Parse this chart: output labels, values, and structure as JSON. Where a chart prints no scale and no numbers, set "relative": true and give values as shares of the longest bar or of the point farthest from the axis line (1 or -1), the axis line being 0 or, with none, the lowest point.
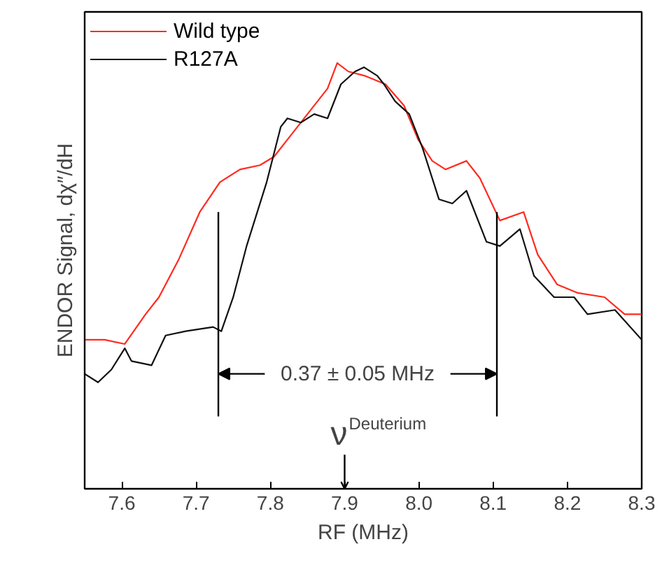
{
  "chart_data": {
    "type": "line",
    "relative": true,
    "xlabel": "RF (MHz)",
    "ylabel": "ENDOR Signal, dχ″/dH",
    "xlim": [
      7.55,
      8.3
    ],
    "xticks": [
      7.6,
      7.7,
      7.8,
      7.9,
      {
        "value": 8.0,
        "label": "8.0"
      },
      8.1,
      8.2,
      8.3
    ],
    "grid": false,
    "legend": "top left",
    "series": [
      {
        "name": "Wild type",
        "color": "#ff2a1f",
        "x": [
          7.55,
          7.577,
          7.604,
          7.632,
          7.65,
          7.677,
          7.705,
          7.732,
          7.759,
          7.786,
          7.805,
          7.823,
          7.85,
          7.877,
          7.89,
          7.905,
          7.927,
          7.955,
          7.98,
          7.999,
          8.018,
          8.036,
          8.064,
          8.082,
          8.109,
          8.141,
          8.16,
          8.186,
          8.214,
          8.25,
          8.277,
          8.3
        ],
        "values": [
          0.35,
          0.35,
          0.34,
          0.41,
          0.45,
          0.54,
          0.65,
          0.72,
          0.75,
          0.76,
          0.78,
          0.82,
          0.88,
          0.94,
          1.0,
          0.98,
          0.97,
          0.95,
          0.9,
          0.82,
          0.77,
          0.75,
          0.77,
          0.73,
          0.63,
          0.65,
          0.55,
          0.48,
          0.46,
          0.45,
          0.41,
          0.41
        ]
      },
      {
        "name": "R127A",
        "color": "#111111",
        "x": [
          7.55,
          7.568,
          7.586,
          7.604,
          7.613,
          7.64,
          7.659,
          7.686,
          7.723,
          7.734,
          7.75,
          7.768,
          7.795,
          7.814,
          7.823,
          7.841,
          7.859,
          7.877,
          7.895,
          7.914,
          7.926,
          7.944,
          7.953,
          7.968,
          7.987,
          8.005,
          8.027,
          8.045,
          8.064,
          8.091,
          8.109,
          8.136,
          8.155,
          8.182,
          8.209,
          8.227,
          8.264,
          8.3
        ],
        "values": [
          0.27,
          0.25,
          0.28,
          0.33,
          0.3,
          0.29,
          0.36,
          0.37,
          0.38,
          0.37,
          0.45,
          0.57,
          0.72,
          0.85,
          0.87,
          0.86,
          0.88,
          0.87,
          0.95,
          0.98,
          0.99,
          0.97,
          0.95,
          0.91,
          0.88,
          0.8,
          0.68,
          0.67,
          0.7,
          0.58,
          0.57,
          0.61,
          0.5,
          0.45,
          0.45,
          0.41,
          0.42,
          0.35
        ]
      }
    ],
    "ref_lines": [
      {
        "axis": "x",
        "value": 7.73,
        "label": null
      },
      {
        "axis": "x",
        "value": 8.105,
        "label": null
      },
      {
        "axis": "x",
        "value": 7.9,
        "label": "ν$^{Deuterium}$"
      }
    ],
    "annotations": [
      "0.37 ± 0.05 MHz"
    ]
  }
}
